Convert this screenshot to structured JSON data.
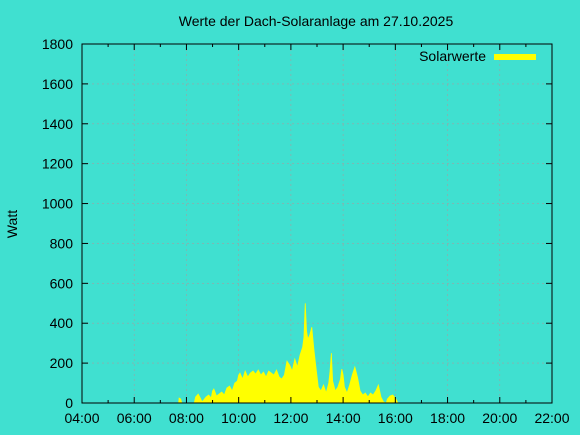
{
  "chart_data": {
    "type": "area",
    "title": "Werte der Dach-Solaranlage am 27.10.2025",
    "xlabel": "",
    "ylabel": "Watt",
    "x_ticks": [
      "04:00",
      "06:00",
      "08:00",
      "10:00",
      "12:00",
      "14:00",
      "16:00",
      "18:00",
      "20:00",
      "22:00"
    ],
    "xlim_hours": [
      4,
      22
    ],
    "ylim": [
      0,
      1800
    ],
    "y_ticks": [
      0,
      200,
      400,
      600,
      800,
      1000,
      1200,
      1400,
      1600,
      1800
    ],
    "grid": true,
    "legend_position": "top-right",
    "series": [
      {
        "name": "Solarwerte",
        "color": "#ffff00",
        "points": [
          [
            7.7,
            0
          ],
          [
            7.72,
            25
          ],
          [
            7.78,
            20
          ],
          [
            7.82,
            0
          ],
          [
            8.3,
            0
          ],
          [
            8.35,
            30
          ],
          [
            8.45,
            45
          ],
          [
            8.55,
            20
          ],
          [
            8.6,
            5
          ],
          [
            8.75,
            30
          ],
          [
            8.85,
            40
          ],
          [
            8.95,
            25
          ],
          [
            9.0,
            60
          ],
          [
            9.05,
            70
          ],
          [
            9.15,
            35
          ],
          [
            9.25,
            45
          ],
          [
            9.35,
            55
          ],
          [
            9.45,
            40
          ],
          [
            9.55,
            75
          ],
          [
            9.65,
            85
          ],
          [
            9.75,
            60
          ],
          [
            9.85,
            100
          ],
          [
            9.95,
            110
          ],
          [
            10.0,
            140
          ],
          [
            10.05,
            150
          ],
          [
            10.15,
            120
          ],
          [
            10.25,
            160
          ],
          [
            10.35,
            130
          ],
          [
            10.45,
            150
          ],
          [
            10.55,
            160
          ],
          [
            10.65,
            145
          ],
          [
            10.75,
            165
          ],
          [
            10.85,
            140
          ],
          [
            10.95,
            155
          ],
          [
            11.05,
            130
          ],
          [
            11.15,
            160
          ],
          [
            11.25,
            150
          ],
          [
            11.35,
            140
          ],
          [
            11.45,
            165
          ],
          [
            11.55,
            130
          ],
          [
            11.65,
            120
          ],
          [
            11.75,
            140
          ],
          [
            11.85,
            210
          ],
          [
            11.95,
            190
          ],
          [
            12.05,
            160
          ],
          [
            12.15,
            220
          ],
          [
            12.25,
            180
          ],
          [
            12.35,
            240
          ],
          [
            12.45,
            280
          ],
          [
            12.5,
            330
          ],
          [
            12.55,
            500
          ],
          [
            12.6,
            360
          ],
          [
            12.65,
            320
          ],
          [
            12.72,
            340
          ],
          [
            12.8,
            380
          ],
          [
            12.88,
            270
          ],
          [
            12.95,
            190
          ],
          [
            13.05,
            80
          ],
          [
            13.15,
            60
          ],
          [
            13.25,
            90
          ],
          [
            13.35,
            50
          ],
          [
            13.45,
            100
          ],
          [
            13.5,
            160
          ],
          [
            13.55,
            250
          ],
          [
            13.6,
            110
          ],
          [
            13.7,
            60
          ],
          [
            13.8,
            80
          ],
          [
            13.9,
            120
          ],
          [
            13.95,
            170
          ],
          [
            14.0,
            140
          ],
          [
            14.05,
            80
          ],
          [
            14.15,
            50
          ],
          [
            14.25,
            90
          ],
          [
            14.35,
            140
          ],
          [
            14.45,
            180
          ],
          [
            14.55,
            130
          ],
          [
            14.65,
            60
          ],
          [
            14.75,
            40
          ],
          [
            14.85,
            50
          ],
          [
            14.95,
            30
          ],
          [
            15.05,
            50
          ],
          [
            15.15,
            40
          ],
          [
            15.25,
            60
          ],
          [
            15.35,
            90
          ],
          [
            15.45,
            30
          ],
          [
            15.55,
            5
          ],
          [
            15.65,
            0
          ],
          [
            15.7,
            20
          ],
          [
            15.8,
            35
          ],
          [
            15.9,
            40
          ],
          [
            16.0,
            25
          ],
          [
            16.1,
            0
          ]
        ]
      }
    ]
  }
}
